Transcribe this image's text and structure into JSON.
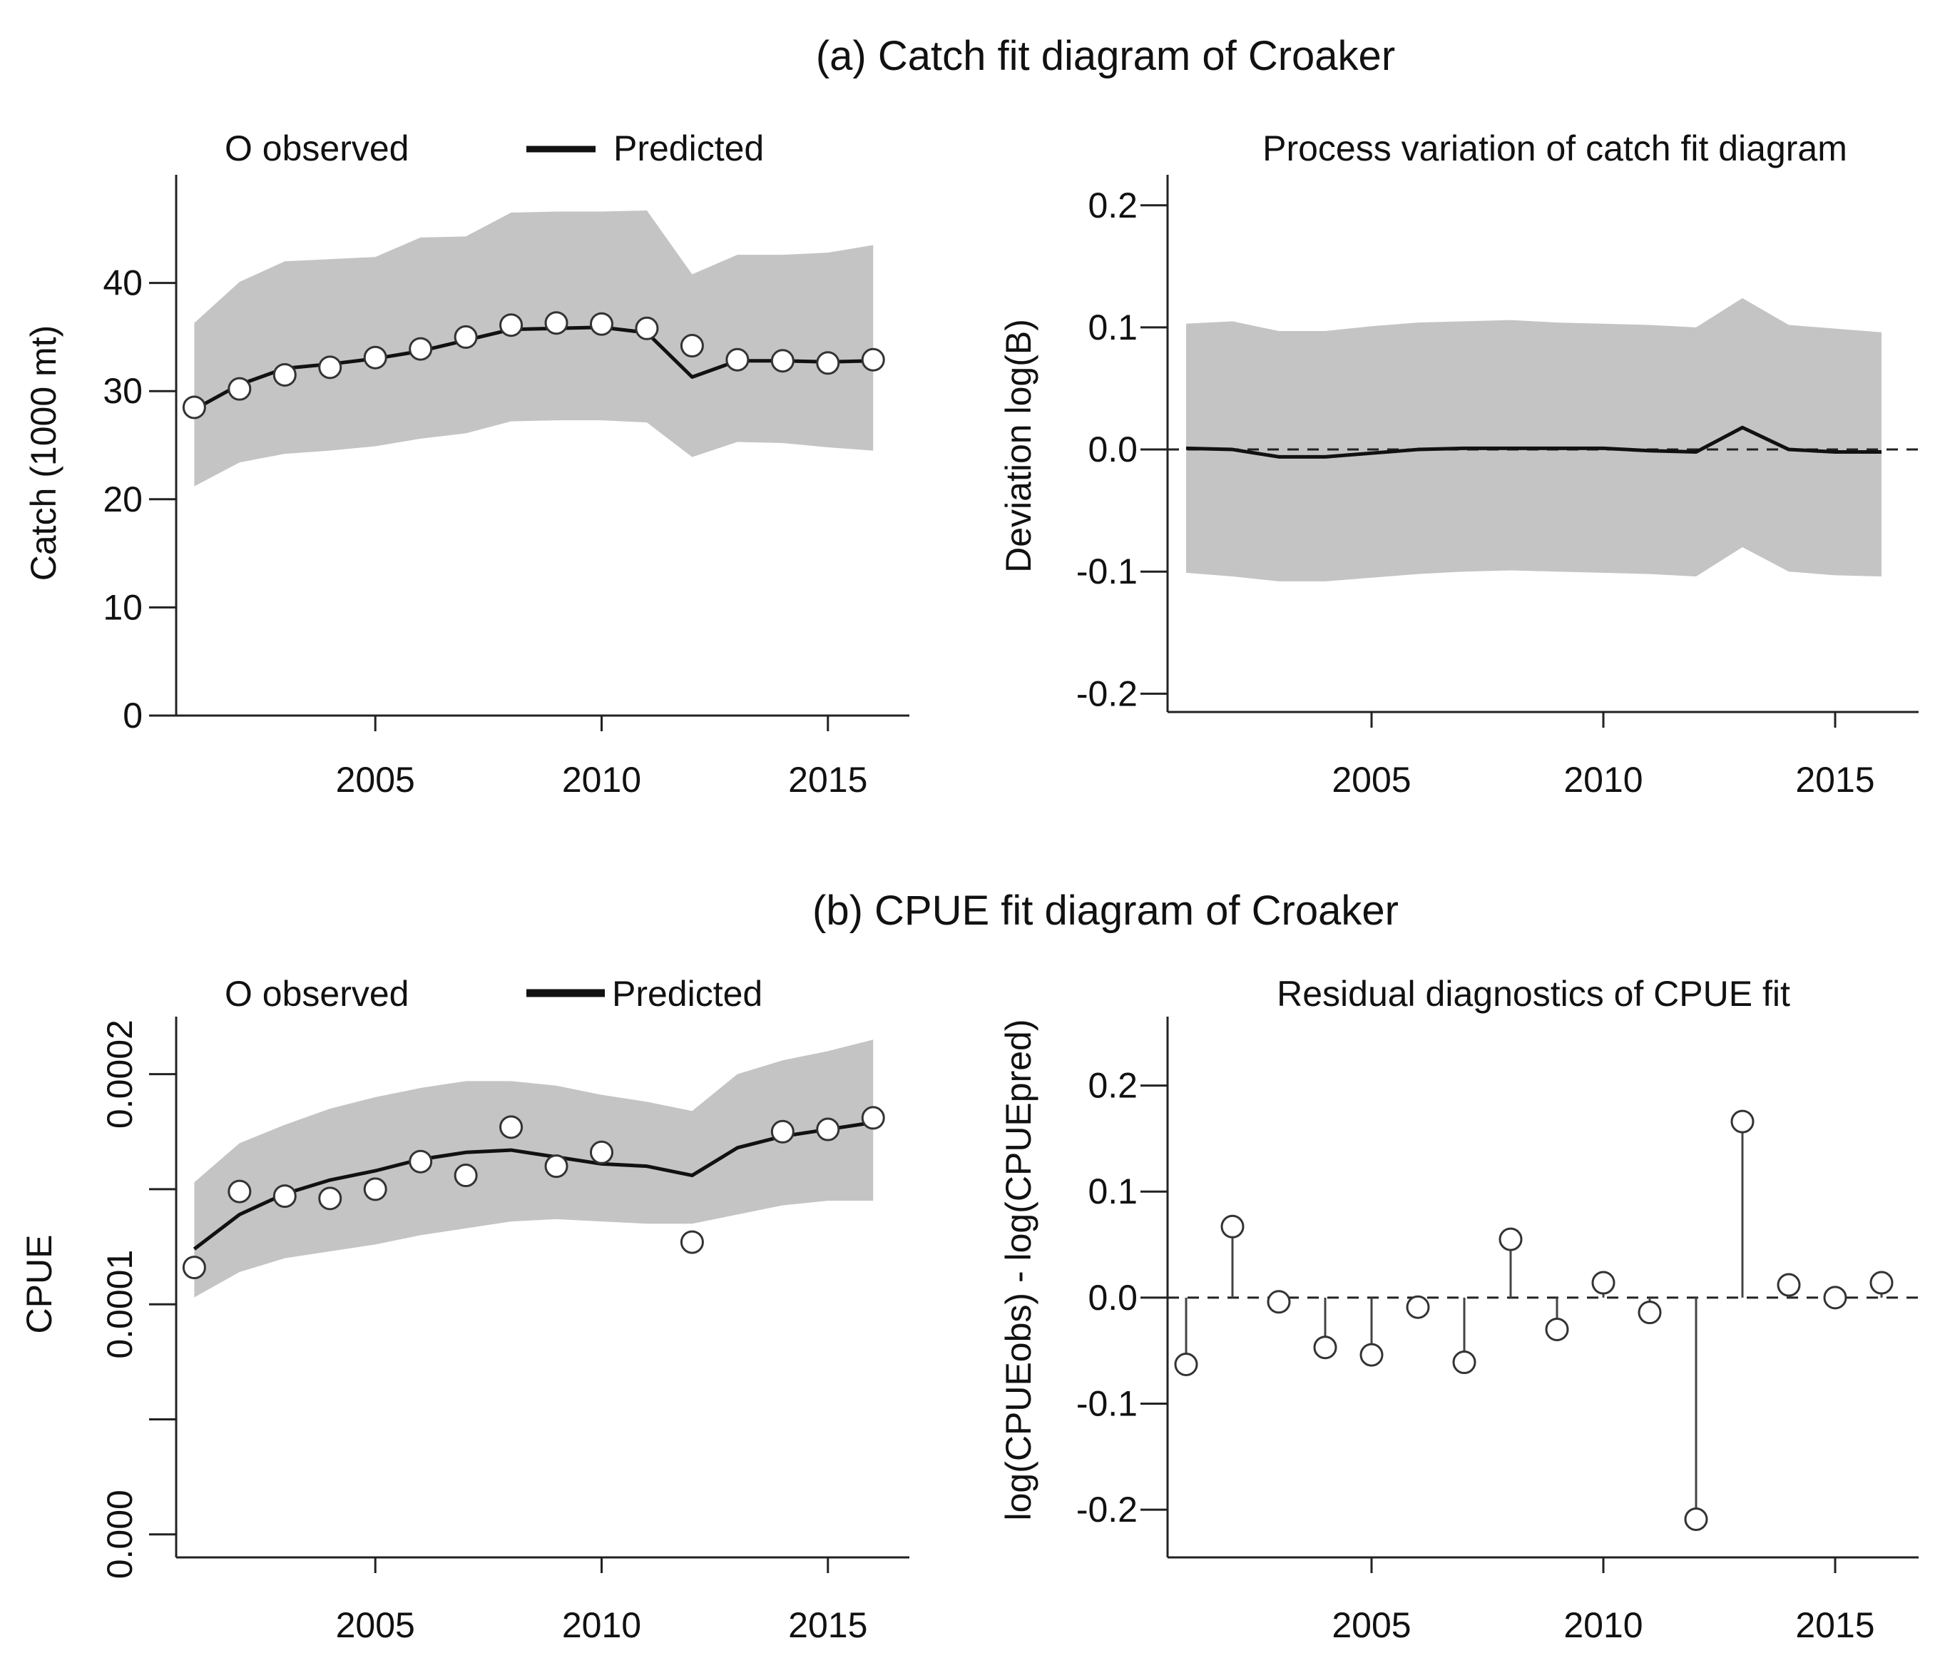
{
  "figure": {
    "section_a_title": "(a) Catch fit diagram of Croaker",
    "section_b_title": "(b) CPUE fit diagram of Croaker"
  },
  "colors": {
    "band": "#c4c4c4",
    "line": "#111111",
    "axis": "#222222",
    "marker_fill": "#ffffff",
    "marker_edge": "#333333",
    "stem": "#444444"
  },
  "chart_data": [
    {
      "id": "catch_fit",
      "type": "line",
      "legend": {
        "observed_label": "O observed",
        "predicted_label": "Predicted",
        "placement": "top"
      },
      "ylabel": "Catch (1000 mt)",
      "xlabel": "",
      "xlim": [
        2000.6,
        2016.8
      ],
      "ylim": [
        0,
        50
      ],
      "xticks": [
        2005,
        2010,
        2015
      ],
      "xtick_labels": [
        "2005",
        "2010",
        "2015"
      ],
      "yticks": [
        0,
        10,
        20,
        30,
        40
      ],
      "ytick_labels": [
        "0",
        "10",
        "20",
        "30",
        "40"
      ],
      "x": [
        2001,
        2002,
        2003,
        2004,
        2005,
        2006,
        2007,
        2008,
        2009,
        2010,
        2011,
        2012,
        2013,
        2014,
        2015,
        2016
      ],
      "observed": [
        28.5,
        30.2,
        31.5,
        32.2,
        33.1,
        33.9,
        35.0,
        36.1,
        36.3,
        36.2,
        35.8,
        34.2,
        32.9,
        32.8,
        32.6,
        32.9
      ],
      "predicted": [
        28.3,
        30.6,
        32.1,
        32.5,
        33.0,
        33.7,
        34.7,
        35.7,
        35.8,
        35.9,
        35.4,
        31.3,
        32.8,
        32.8,
        32.7,
        32.8
      ],
      "band_upper": [
        36.3,
        40.1,
        42.0,
        42.2,
        42.4,
        44.2,
        44.3,
        46.5,
        46.6,
        46.6,
        46.7,
        40.8,
        42.6,
        42.6,
        42.8,
        43.5
      ],
      "band_lower": [
        21.2,
        23.4,
        24.2,
        24.5,
        24.9,
        25.6,
        26.1,
        27.2,
        27.3,
        27.3,
        27.1,
        23.9,
        25.3,
        25.2,
        24.8,
        24.5
      ]
    },
    {
      "id": "catch_process_variation",
      "type": "area",
      "title": "Process variation of catch fit diagram",
      "ylabel": "Deviation log(B)",
      "xlabel": "",
      "xlim": [
        2000.6,
        2016.8
      ],
      "ylim": [
        -0.215,
        0.225
      ],
      "xticks": [
        2005,
        2010,
        2015
      ],
      "xtick_labels": [
        "2005",
        "2010",
        "2015"
      ],
      "yticks": [
        0.2,
        0.1,
        0.0,
        -0.1,
        -0.2
      ],
      "ytick_labels": [
        "0.2",
        "0.1",
        "0.0",
        "-0.1",
        "-0.2"
      ],
      "reference_line": 0.0,
      "x": [
        2001,
        2002,
        2003,
        2004,
        2005,
        2006,
        2007,
        2008,
        2009,
        2010,
        2011,
        2012,
        2013,
        2014,
        2015,
        2016
      ],
      "deviation": [
        0.001,
        0.0,
        -0.006,
        -0.006,
        -0.003,
        0.0,
        0.001,
        0.001,
        0.001,
        0.001,
        -0.001,
        -0.002,
        0.018,
        0.0,
        -0.002,
        -0.002
      ],
      "band_upper": [
        0.103,
        0.105,
        0.097,
        0.097,
        0.101,
        0.104,
        0.105,
        0.106,
        0.104,
        0.103,
        0.102,
        0.1,
        0.124,
        0.102,
        0.099,
        0.096
      ],
      "band_lower": [
        -0.101,
        -0.104,
        -0.108,
        -0.108,
        -0.105,
        -0.102,
        -0.1,
        -0.099,
        -0.1,
        -0.101,
        -0.102,
        -0.104,
        -0.08,
        -0.1,
        -0.103,
        -0.104
      ]
    },
    {
      "id": "cpue_fit",
      "type": "line",
      "legend": {
        "observed_label": "O observed",
        "predicted_label": "Predicted",
        "placement": "top"
      },
      "ylabel": "CPUE",
      "xlabel": "",
      "xlim": [
        2000.6,
        2016.8
      ],
      "ylim": [
        -1e-05,
        0.000225
      ],
      "xticks": [
        2005,
        2010,
        2015
      ],
      "xtick_labels": [
        "2005",
        "2010",
        "2015"
      ],
      "yticks": [
        0.0,
        5e-05,
        0.0001,
        0.00015,
        0.0002
      ],
      "ytick_labels": [
        "0.000",
        "",
        "0.0001",
        "",
        "0.0002"
      ],
      "x": [
        2001,
        2002,
        2003,
        2004,
        2005,
        2006,
        2007,
        2008,
        2009,
        2010,
        2011,
        2012,
        2013,
        2014,
        2015,
        2016
      ],
      "observed": [
        0.000116,
        0.000149,
        0.000147,
        0.000146,
        0.00015,
        0.000162,
        0.000156,
        0.000177,
        0.00016,
        0.000166,
        null,
        0.000127,
        null,
        0.000175,
        0.000176,
        0.000181
      ],
      "predicted": [
        0.000124,
        0.000139,
        0.000148,
        0.000154,
        0.000158,
        0.000163,
        0.000166,
        0.000167,
        0.000164,
        0.000161,
        0.00016,
        0.000156,
        0.000168,
        0.000173,
        0.000176,
        0.000179
      ],
      "band_upper": [
        0.000153,
        0.00017,
        0.000178,
        0.000185,
        0.00019,
        0.000194,
        0.000197,
        0.000197,
        0.000195,
        0.000191,
        0.000188,
        0.000184,
        0.0002,
        0.000206,
        0.00021,
        0.000215
      ],
      "band_lower": [
        0.000103,
        0.000114,
        0.00012,
        0.000123,
        0.000126,
        0.00013,
        0.000133,
        0.000136,
        0.000137,
        0.000136,
        0.000135,
        0.000135,
        0.000139,
        0.000143,
        0.000145,
        0.000145
      ]
    },
    {
      "id": "cpue_residuals",
      "type": "scatter",
      "title": "Residual diagnostics of CPUE fit",
      "ylabel": "log(CPUEobs) - log(CPUEpred)",
      "xlabel": "",
      "xlim": [
        2000.6,
        2016.8
      ],
      "ylim": [
        -0.245,
        0.265
      ],
      "xticks": [
        2005,
        2010,
        2015
      ],
      "xtick_labels": [
        "2005",
        "2010",
        "2015"
      ],
      "yticks": [
        0.2,
        0.1,
        0.0,
        -0.1,
        -0.2
      ],
      "ytick_labels": [
        "0.2",
        "0.1",
        "0.0",
        "-0.1",
        "-0.2"
      ],
      "reference_line": 0.0,
      "x": [
        2001,
        2002,
        2003,
        2004,
        2005,
        2006,
        2007,
        2008,
        2009,
        2010,
        2011,
        2012,
        2013,
        2014,
        2015,
        2016
      ],
      "residuals": [
        -0.063,
        0.067,
        -0.004,
        -0.047,
        -0.054,
        -0.009,
        -0.061,
        0.055,
        -0.03,
        0.014,
        -0.014,
        -0.209,
        0.166,
        0.012,
        0.0,
        0.014
      ]
    }
  ]
}
